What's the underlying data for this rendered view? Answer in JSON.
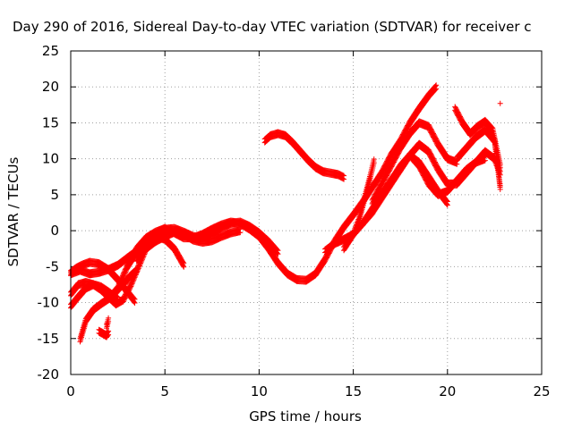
{
  "chart_data": {
    "type": "scatter",
    "title": "Day 290 of 2016, Sidereal Day-to-day VTEC variation (SDTVAR) for receiver c",
    "xlabel": "GPS time / hours",
    "ylabel": "SDTVAR / TECUs",
    "xlim": [
      0,
      25
    ],
    "ylim": [
      -20,
      25
    ],
    "xticks": [
      0,
      5,
      10,
      15,
      20,
      25
    ],
    "yticks": [
      -20,
      -15,
      -10,
      -5,
      0,
      5,
      10,
      15,
      20,
      25
    ],
    "grid": true,
    "marker": "+",
    "color": "#ff0000",
    "series": [
      {
        "x": [
          0.0,
          0.3,
          0.6,
          1.0,
          1.5,
          2.0,
          2.5,
          3.0,
          3.4
        ],
        "y": [
          -5.8,
          -5.2,
          -4.8,
          -4.4,
          -4.6,
          -5.4,
          -6.8,
          -8.5,
          -9.8
        ]
      },
      {
        "x": [
          0.0,
          0.5,
          1.0,
          1.5,
          2.0,
          2.5,
          3.0,
          3.5,
          4.0,
          4.5,
          5.0
        ],
        "y": [
          -6.0,
          -5.5,
          -6.0,
          -5.8,
          -5.4,
          -4.8,
          -3.8,
          -2.8,
          -1.8,
          -1.0,
          -0.5
        ]
      },
      {
        "x": [
          0.0,
          0.4,
          0.8,
          1.2,
          1.6,
          2.0,
          2.4,
          2.8,
          3.2,
          3.6,
          4.0,
          4.5,
          5.0
        ],
        "y": [
          -8.8,
          -7.5,
          -7.2,
          -7.5,
          -8.2,
          -9.2,
          -10.2,
          -9.6,
          -7.5,
          -5.0,
          -2.5,
          -0.5,
          0.3
        ]
      },
      {
        "x": [
          0.0,
          0.4,
          0.8,
          1.2,
          1.6,
          2.0,
          2.5
        ],
        "y": [
          -10.5,
          -9.2,
          -8.0,
          -7.5,
          -7.8,
          -8.5,
          -9.5
        ]
      },
      {
        "x": [
          0.5,
          0.8,
          1.2,
          1.6,
          2.0,
          2.4,
          2.8,
          3.2,
          3.5
        ],
        "y": [
          -15.2,
          -12.5,
          -11.0,
          -10.2,
          -9.5,
          -8.5,
          -7.4,
          -6.2,
          -5.5
        ]
      },
      {
        "x": [
          1.5,
          1.7,
          1.9,
          2.0
        ],
        "y": [
          -14.0,
          -14.3,
          -14.6,
          -14.2
        ]
      },
      {
        "x": [
          1.9,
          1.95,
          2.0
        ],
        "y": [
          -13.3,
          -12.9,
          -12.4
        ]
      },
      {
        "x": [
          2.0,
          2.5,
          3.0,
          3.5,
          4.0,
          4.5,
          5.0,
          5.5,
          6.0,
          6.5,
          7.0,
          7.5,
          8.0,
          8.5,
          9.0,
          9.5,
          10.0,
          10.5,
          11.0,
          11.5,
          12.0,
          12.5,
          13.0,
          13.5,
          14.0,
          14.5,
          15.0,
          15.5,
          16.0,
          16.5,
          17.0,
          17.5,
          18.0,
          18.5,
          19.0,
          19.4
        ],
        "y": [
          -9.5,
          -8.0,
          -5.0,
          -2.5,
          -1.0,
          -0.2,
          0.3,
          -0.3,
          -1.0,
          -1.0,
          -0.5,
          0.2,
          0.8,
          1.2,
          1.0,
          0.2,
          -0.8,
          -2.5,
          -4.5,
          -6.0,
          -6.8,
          -6.9,
          -6.0,
          -4.0,
          -1.5,
          0.5,
          2.2,
          4.0,
          6.0,
          8.0,
          10.5,
          12.5,
          15.0,
          17.0,
          18.8,
          20.0
        ]
      },
      {
        "x": [
          3.0,
          3.5,
          4.0,
          4.5,
          5.0,
          5.5,
          6.0
        ],
        "y": [
          -5.0,
          -3.0,
          -1.5,
          -0.8,
          -1.2,
          -2.5,
          -4.8
        ]
      },
      {
        "x": [
          3.5,
          4.0,
          4.5,
          5.0,
          5.5,
          6.0,
          6.5,
          7.0,
          7.5,
          8.0,
          8.5,
          9.0
        ],
        "y": [
          -4.0,
          -2.5,
          -1.5,
          -0.8,
          -0.2,
          -0.5,
          -1.3,
          -1.6,
          -1.4,
          -0.8,
          -0.3,
          0.0
        ]
      },
      {
        "x": [
          4.0,
          4.5,
          5.0,
          5.5,
          6.0,
          6.5,
          7.0,
          7.5,
          8.0,
          8.5,
          9.0,
          9.5,
          10.0,
          10.5,
          11.0
        ],
        "y": [
          -2.0,
          -0.8,
          0.2,
          0.3,
          -0.2,
          -0.8,
          -1.0,
          -0.4,
          0.4,
          1.0,
          1.2,
          0.6,
          -0.3,
          -1.5,
          -3.0
        ]
      },
      {
        "x": [
          10.3,
          10.6,
          11.0,
          11.4,
          11.8,
          12.2,
          12.6,
          13.0,
          13.4,
          13.8,
          14.2,
          14.5
        ],
        "y": [
          12.5,
          13.2,
          13.5,
          13.2,
          12.2,
          11.0,
          9.8,
          8.8,
          8.2,
          8.0,
          7.8,
          7.4
        ]
      },
      {
        "x": [
          13.5,
          14.0,
          14.5,
          15.0,
          15.3,
          15.6,
          15.9,
          16.1
        ],
        "y": [
          -2.8,
          -1.8,
          -1.2,
          -0.5,
          1.5,
          4.5,
          7.5,
          9.7
        ]
      },
      {
        "x": [
          14.5,
          15.0,
          15.5,
          16.0,
          16.5,
          17.0,
          17.5,
          18.0,
          18.5,
          19.0,
          19.5,
          20.0
        ],
        "y": [
          -2.5,
          -0.5,
          1.0,
          3.0,
          5.0,
          7.0,
          9.0,
          10.5,
          9.5,
          7.5,
          5.5,
          3.8
        ]
      },
      {
        "x": [
          15.5,
          16.0,
          16.5,
          17.0,
          17.5,
          18.0,
          18.5,
          19.0,
          19.5,
          20.0,
          20.5,
          21.0,
          21.5,
          22.0,
          22.5,
          22.8
        ],
        "y": [
          1.0,
          2.5,
          4.5,
          6.5,
          8.5,
          10.5,
          12.0,
          11.0,
          8.5,
          6.5,
          6.5,
          8.0,
          9.5,
          11.0,
          10.0,
          8.0
        ]
      },
      {
        "x": [
          16.0,
          16.5,
          17.0,
          17.5,
          18.0,
          18.5,
          19.0,
          19.5,
          20.0,
          20.5
        ],
        "y": [
          4.0,
          6.5,
          9.0,
          11.5,
          13.5,
          15.0,
          14.5,
          12.0,
          10.0,
          9.5
        ]
      },
      {
        "x": [
          16.5,
          17.0,
          17.5,
          18.0,
          18.5,
          19.0,
          19.5,
          20.0,
          20.5,
          21.0,
          21.5,
          22.0
        ],
        "y": [
          5.0,
          7.0,
          8.5,
          10.5,
          9.0,
          6.5,
          5.0,
          5.5,
          7.0,
          8.5,
          9.5,
          10.0
        ]
      },
      {
        "x": [
          20.4,
          20.8,
          21.2,
          21.6,
          22.0,
          22.4,
          22.8
        ],
        "y": [
          17.0,
          15.0,
          13.5,
          14.5,
          15.2,
          14.0,
          9.0
        ]
      },
      {
        "x": [
          20.5,
          21.0,
          21.5,
          22.0,
          22.5,
          22.8
        ],
        "y": [
          10.0,
          11.5,
          13.0,
          14.0,
          12.5,
          6.0
        ]
      },
      {
        "x": [
          22.8
        ],
        "y": [
          17.7
        ]
      }
    ]
  }
}
